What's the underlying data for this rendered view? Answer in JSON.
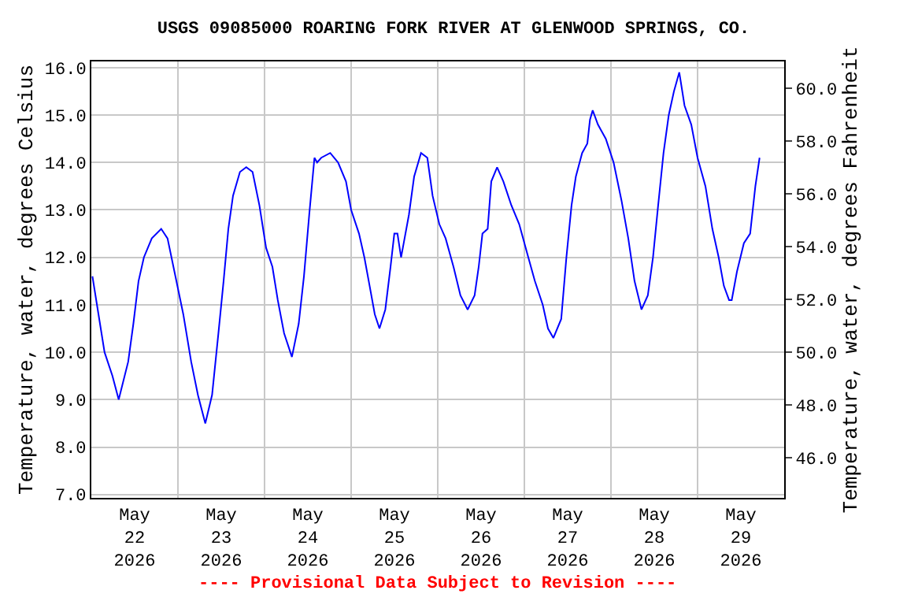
{
  "chart_data": {
    "type": "line",
    "title": "USGS 09085000 ROARING FORK RIVER AT GLENWOOD SPRINGS, CO.",
    "ylabel": "Temperature, water, degrees Celsius",
    "y2label": "Temperature, water, degrees Fahrenheit",
    "annotations": [
      "---- Provisional Data Subject to Revision ----"
    ],
    "x": [
      "2026-05-22T00:18",
      "2026-05-22T03:40",
      "2026-05-22T05:51",
      "2026-05-22T07:35",
      "2026-05-22T10:13",
      "2026-05-22T11:39",
      "2026-05-22T13:05",
      "2026-05-22T14:34",
      "2026-05-22T16:45",
      "2026-05-22T19:22",
      "2026-05-22T21:07",
      "2026-05-22T23:18",
      "2026-05-23T01:29",
      "2026-05-23T03:40",
      "2026-05-23T05:32",
      "2026-05-23T07:35",
      "2026-05-23T09:28",
      "2026-05-23T11:13",
      "2026-05-23T12:39",
      "2026-05-23T13:58",
      "2026-05-23T15:16",
      "2026-05-23T17:11",
      "2026-05-23T18:56",
      "2026-05-23T20:41",
      "2026-05-23T22:34",
      "2026-05-24T00:26",
      "2026-05-24T02:11",
      "2026-05-24T03:40",
      "2026-05-24T05:25",
      "2026-05-24T07:35",
      "2026-05-24T09:28",
      "2026-05-24T10:55",
      "2026-05-24T12:23",
      "2026-05-24T13:50",
      "2026-05-24T14:34",
      "2026-05-24T15:43",
      "2026-05-24T18:12",
      "2026-05-24T20:23",
      "2026-05-24T22:34",
      "2026-05-25T00:00",
      "2026-05-25T02:11",
      "2026-05-25T03:40",
      "2026-05-25T05:07",
      "2026-05-25T06:33",
      "2026-05-25T07:51",
      "2026-05-25T09:28",
      "2026-05-25T10:55",
      "2026-05-25T11:58",
      "2026-05-25T12:50",
      "2026-05-25T13:50",
      "2026-05-25T14:34",
      "2026-05-25T16:01",
      "2026-05-25T17:27",
      "2026-05-25T19:22",
      "2026-05-25T21:07",
      "2026-05-25T22:34",
      "2026-05-26T00:26",
      "2026-05-26T02:11",
      "2026-05-26T04:22",
      "2026-05-26T06:17",
      "2026-05-26T08:17",
      "2026-05-26T10:13",
      "2026-05-26T11:21",
      "2026-05-26T12:23",
      "2026-05-26T13:50",
      "2026-05-26T14:50",
      "2026-05-26T16:27",
      "2026-05-26T18:11",
      "2026-05-26T20:23",
      "2026-05-26T22:34",
      "2026-05-27T00:44",
      "2026-05-27T02:55",
      "2026-05-27T05:06",
      "2026-05-27T06:33",
      "2026-05-27T08:02",
      "2026-05-27T10:13",
      "2026-05-27T11:39",
      "2026-05-27T13:05",
      "2026-05-27T14:16",
      "2026-05-27T16:01",
      "2026-05-27T17:27",
      "2026-05-27T18:11",
      "2026-05-27T18:56",
      "2026-05-27T20:23",
      "2026-05-27T22:34",
      "2026-05-28T00:44",
      "2026-05-28T02:55",
      "2026-05-28T04:48",
      "2026-05-28T06:32",
      "2026-05-28T08:28",
      "2026-05-28T10:13",
      "2026-05-28T11:39",
      "2026-05-28T13:05",
      "2026-05-28T14:34",
      "2026-05-28T16:01",
      "2026-05-28T17:27",
      "2026-05-28T18:56",
      "2026-05-28T20:23",
      "2026-05-28T22:15",
      "2026-05-29T00:00",
      "2026-05-29T02:11",
      "2026-05-29T04:06",
      "2026-05-29T05:51",
      "2026-05-29T07:17",
      "2026-05-29T08:44",
      "2026-05-29T09:28",
      "2026-05-29T10:55",
      "2026-05-29T12:50",
      "2026-05-29T14:34",
      "2026-05-29T16:01",
      "2026-05-29T17:11"
    ],
    "series": [
      {
        "color": "#0000ff",
        "values": [
          11.6,
          10.0,
          9.5,
          9.0,
          9.8,
          10.6,
          11.5,
          12.0,
          12.4,
          12.6,
          12.4,
          11.6,
          10.8,
          9.8,
          9.1,
          8.5,
          9.1,
          10.4,
          11.5,
          12.6,
          13.3,
          13.8,
          13.9,
          13.8,
          13.1,
          12.2,
          11.8,
          11.1,
          10.4,
          9.9,
          10.6,
          11.6,
          12.9,
          14.1,
          14.0,
          14.1,
          14.2,
          14.0,
          13.6,
          13.0,
          12.5,
          12.0,
          11.4,
          10.8,
          10.5,
          10.9,
          11.8,
          12.5,
          12.5,
          12.0,
          12.3,
          12.9,
          13.7,
          14.2,
          14.1,
          13.3,
          12.7,
          12.4,
          11.8,
          11.2,
          10.9,
          11.2,
          11.8,
          12.5,
          12.6,
          13.6,
          13.9,
          13.6,
          13.1,
          12.7,
          12.1,
          11.5,
          11.0,
          10.5,
          10.3,
          10.7,
          12.0,
          13.1,
          13.7,
          14.2,
          14.4,
          14.9,
          15.1,
          14.8,
          14.5,
          14.0,
          13.2,
          12.4,
          11.5,
          10.9,
          11.2,
          12.0,
          13.1,
          14.2,
          15.0,
          15.5,
          15.9,
          15.2,
          14.8,
          14.1,
          13.5,
          12.6,
          12.0,
          11.4,
          11.1,
          11.1,
          11.7,
          12.3,
          12.5,
          13.5,
          14.1
        ]
      }
    ],
    "xlim": [
      "2026-05-22T00:00",
      "2026-05-30T00:00"
    ],
    "xticks": [
      {
        "value": "2026-05-22T12:00",
        "label": "May\n22\n2026"
      },
      {
        "value": "2026-05-23T00:00",
        "label": null
      },
      {
        "value": "2026-05-23T12:00",
        "label": "May\n23\n2026"
      },
      {
        "value": "2026-05-24T00:00",
        "label": null
      },
      {
        "value": "2026-05-24T12:00",
        "label": "May\n24\n2026"
      },
      {
        "value": "2026-05-25T00:00",
        "label": null
      },
      {
        "value": "2026-05-25T12:00",
        "label": "May\n25\n2026"
      },
      {
        "value": "2026-05-26T00:00",
        "label": null
      },
      {
        "value": "2026-05-26T12:00",
        "label": "May\n26\n2026"
      },
      {
        "value": "2026-05-27T00:00",
        "label": null
      },
      {
        "value": "2026-05-27T12:00",
        "label": "May\n27\n2026"
      },
      {
        "value": "2026-05-28T00:00",
        "label": null
      },
      {
        "value": "2026-05-28T12:00",
        "label": "May\n28\n2026"
      },
      {
        "value": "2026-05-29T00:00",
        "label": null
      },
      {
        "value": "2026-05-29T12:00",
        "label": "May\n29\n2026"
      }
    ],
    "ylim": [
      6.93,
      16.13
    ],
    "yticks": [
      {
        "value": 7,
        "label": "7.0"
      },
      {
        "value": 8,
        "label": "8.0"
      },
      {
        "value": 9,
        "label": "9.0"
      },
      {
        "value": 10,
        "label": "10.0"
      },
      {
        "value": 11,
        "label": "11.0"
      },
      {
        "value": 12,
        "label": "12.0"
      },
      {
        "value": 13,
        "label": "13.0"
      },
      {
        "value": 14,
        "label": "14.0"
      },
      {
        "value": 15,
        "label": "15.0"
      },
      {
        "value": 16,
        "label": "16.0"
      }
    ],
    "y2lim": [
      44.47,
      61.03
    ],
    "y2ticks": [
      {
        "value": 46,
        "label": "46.0"
      },
      {
        "value": 48,
        "label": "48.0"
      },
      {
        "value": 50,
        "label": "50.0"
      },
      {
        "value": 52,
        "label": "52.0"
      },
      {
        "value": 54,
        "label": "54.0"
      },
      {
        "value": 56,
        "label": "56.0"
      },
      {
        "value": 58,
        "label": "58.0"
      },
      {
        "value": 60,
        "label": "60.0"
      }
    ],
    "grid": true,
    "marker": "none",
    "line_style": "solid"
  }
}
